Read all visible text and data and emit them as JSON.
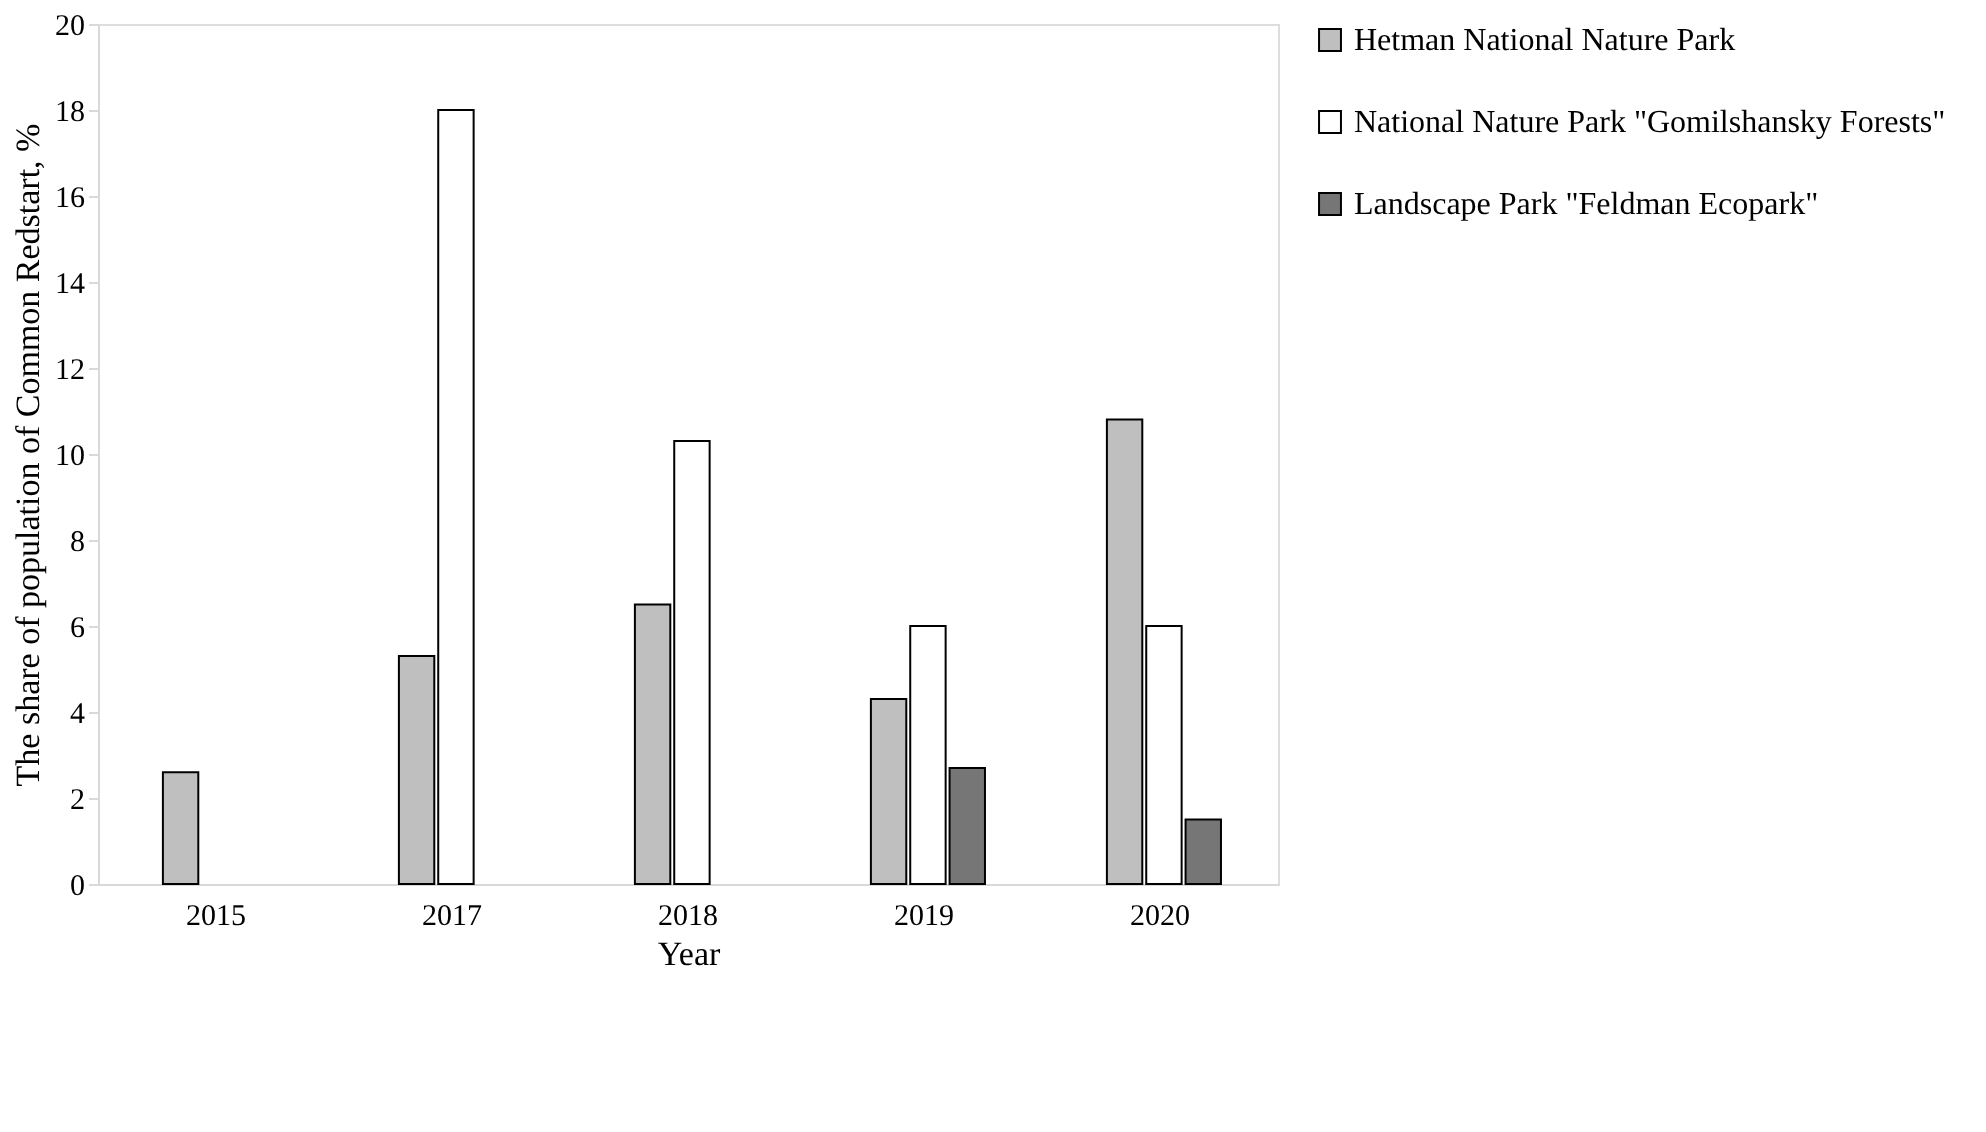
{
  "chart_data": {
    "type": "bar",
    "xlabel": "Year",
    "ylabel": "The share of population of Common Redstart, %",
    "categories": [
      "2015",
      "2017",
      "2018",
      "2019",
      "2020"
    ],
    "series": [
      {
        "name": "Hetman National Nature Park",
        "color": "#bfbfbf",
        "values": [
          2.6,
          5.3,
          6.5,
          4.3,
          10.8
        ]
      },
      {
        "name": "National Nature Park \"Gomilshansky Forests\"",
        "color": "#ffffff",
        "values": [
          null,
          18,
          10.3,
          6,
          6
        ]
      },
      {
        "name": "Landscape Park \"Feldman Ecopark\"",
        "color": "#767676",
        "values": [
          null,
          null,
          null,
          2.7,
          1.5
        ]
      }
    ],
    "ylim": [
      0,
      20
    ],
    "yticks": [
      0,
      2,
      4,
      6,
      8,
      10,
      12,
      14,
      16,
      18,
      20
    ],
    "grid": false,
    "legend": "right"
  }
}
